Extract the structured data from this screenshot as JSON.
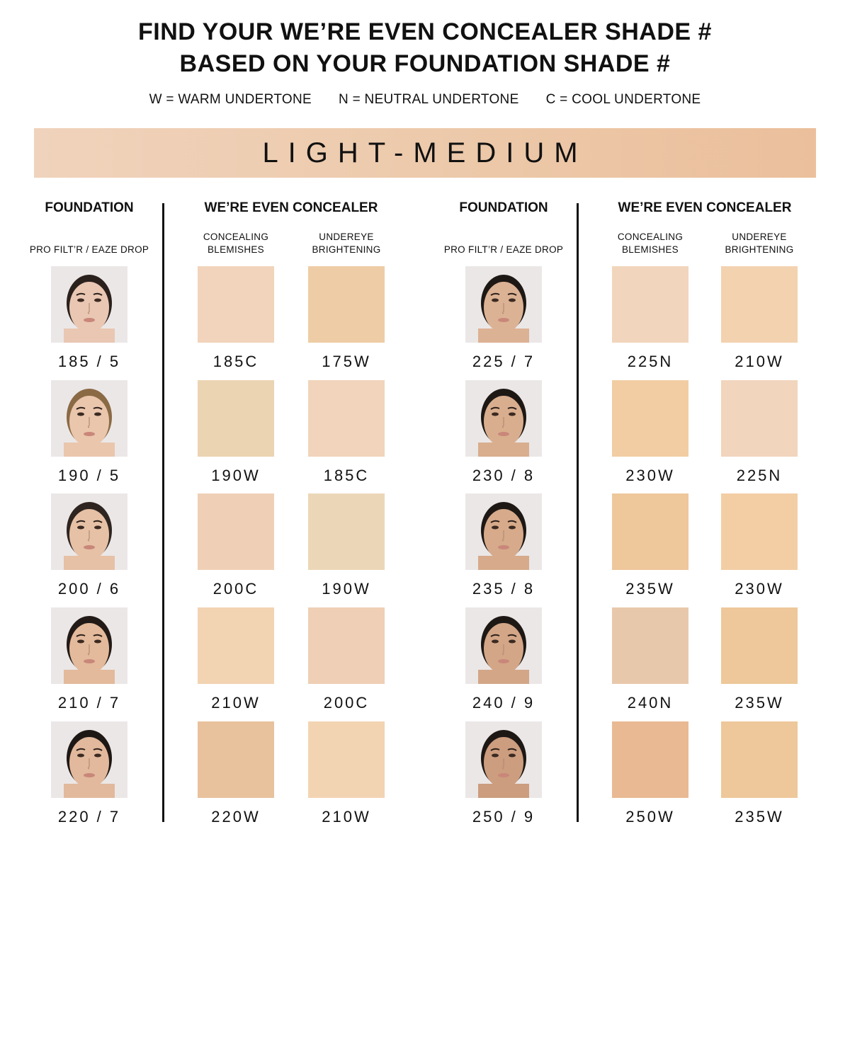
{
  "title_line1": "FIND YOUR WE’RE EVEN CONCEALER SHADE #",
  "title_line2": "BASED ON YOUR FOUNDATION SHADE #",
  "legend": [
    "W = WARM UNDERTONE",
    "N = NEUTRAL UNDERTONE",
    "C = COOL UNDERTONE"
  ],
  "banner": "LIGHT-MEDIUM",
  "headers": {
    "foundation": "FOUNDATION",
    "concealer": "WE’RE EVEN CONCEALER",
    "foundation_sub": "PRO FILT’R / EAZE DROP",
    "col1_sub": [
      "CONCEALING",
      "BLEMISHES"
    ],
    "col2_sub": [
      "UNDEREYE",
      "BRIGHTENING"
    ]
  },
  "groups": [
    {
      "rows": [
        {
          "foundation": "185 / 5",
          "skin": "#e9c7b3",
          "hair": "#2a201c",
          "blemish": {
            "shade": "185C",
            "color": "#f1d4bb"
          },
          "undereye": {
            "shade": "175W",
            "color": "#eecda6"
          }
        },
        {
          "foundation": "190 / 5",
          "skin": "#eac6ad",
          "hair": "#8a6a45",
          "blemish": {
            "shade": "190W",
            "color": "#ebd4b2"
          },
          "undereye": {
            "shade": "185C",
            "color": "#f1d4bb"
          }
        },
        {
          "foundation": "200 / 6",
          "skin": "#e6c1a6",
          "hair": "#2e2520",
          "blemish": {
            "shade": "200C",
            "color": "#efd0b6"
          },
          "undereye": {
            "shade": "190W",
            "color": "#ebd7b8"
          }
        },
        {
          "foundation": "210 / 7",
          "skin": "#e3ba9b",
          "hair": "#221a16",
          "blemish": {
            "shade": "210W",
            "color": "#f2d3b2"
          },
          "undereye": {
            "shade": "200C",
            "color": "#efcfb5"
          }
        },
        {
          "foundation": "220 / 7",
          "skin": "#e2b99c",
          "hair": "#1e1815",
          "blemish": {
            "shade": "220W",
            "color": "#e8c19d"
          },
          "undereye": {
            "shade": "210W",
            "color": "#f3d4b2"
          }
        }
      ]
    },
    {
      "rows": [
        {
          "foundation": "225 / 7",
          "skin": "#dcb294",
          "hair": "#1e1815",
          "blemish": {
            "shade": "225N",
            "color": "#f1d5bc"
          },
          "undereye": {
            "shade": "210W",
            "color": "#f3d2b0"
          }
        },
        {
          "foundation": "230 / 8",
          "skin": "#d9ae8e",
          "hair": "#1e1815",
          "blemish": {
            "shade": "230W",
            "color": "#f2cda3"
          },
          "undereye": {
            "shade": "225N",
            "color": "#f1d5bd"
          }
        },
        {
          "foundation": "235 / 8",
          "skin": "#d6aa8a",
          "hair": "#1e1815",
          "blemish": {
            "shade": "235W",
            "color": "#eec79b"
          },
          "undereye": {
            "shade": "230W",
            "color": "#f3cea4"
          }
        },
        {
          "foundation": "240 / 9",
          "skin": "#d3a687",
          "hair": "#1e1815",
          "blemish": {
            "shade": "240N",
            "color": "#e8c8ab"
          },
          "undereye": {
            "shade": "235W",
            "color": "#eec89a"
          }
        },
        {
          "foundation": "250 / 9",
          "skin": "#cc9d7e",
          "hair": "#1e1815",
          "blemish": {
            "shade": "250W",
            "color": "#e9b993"
          },
          "undereye": {
            "shade": "235W",
            "color": "#eec89a"
          }
        }
      ]
    }
  ]
}
